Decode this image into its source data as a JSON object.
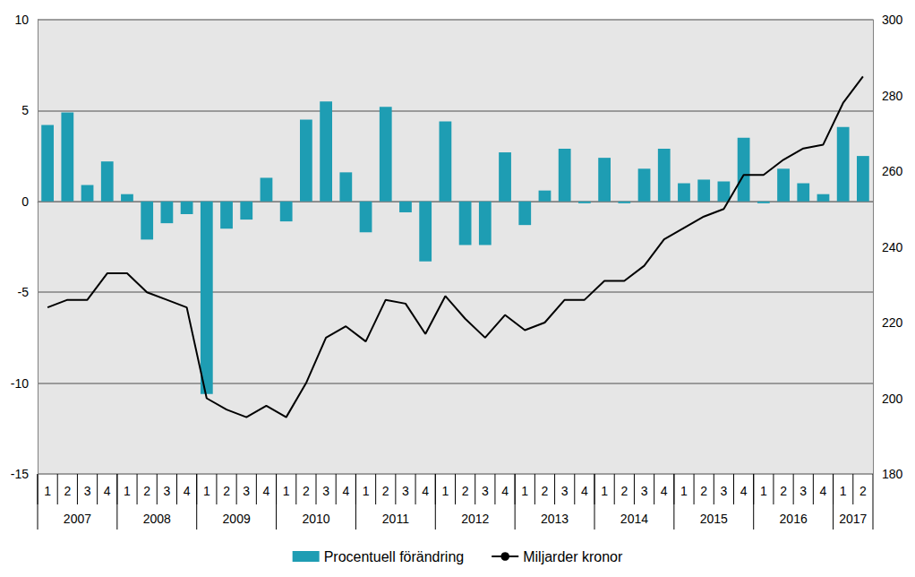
{
  "chart_data": {
    "type": "bar",
    "categories": [
      "1",
      "2",
      "3",
      "4",
      "1",
      "2",
      "3",
      "4",
      "1",
      "2",
      "3",
      "4",
      "1",
      "2",
      "3",
      "4",
      "1",
      "2",
      "3",
      "4",
      "1",
      "2",
      "3",
      "4",
      "1",
      "2",
      "3",
      "4",
      "1",
      "2",
      "3",
      "4",
      "1",
      "2",
      "3",
      "4",
      "1",
      "2",
      "3",
      "4",
      "1",
      "2"
    ],
    "x_groups": [
      "2007",
      "2008",
      "2009",
      "2010",
      "2011",
      "2012",
      "2013",
      "2014",
      "2015",
      "2016",
      "2017"
    ],
    "series": [
      {
        "name": "Procentuell förändring",
        "type": "bar",
        "color": "#1e9db3",
        "values": [
          4.2,
          4.9,
          0.9,
          2.2,
          0.4,
          -2.1,
          -1.2,
          -0.7,
          -10.6,
          -1.5,
          -1.0,
          1.3,
          -1.1,
          4.5,
          5.5,
          1.6,
          -1.7,
          5.2,
          -0.6,
          -3.3,
          4.4,
          -2.4,
          -2.4,
          2.7,
          -1.3,
          0.6,
          2.9,
          -0.1,
          2.4,
          -0.1,
          1.8,
          2.9,
          1.0,
          1.2,
          1.1,
          3.5,
          -0.1,
          1.8,
          1.0,
          0.4,
          4.1,
          2.5
        ]
      },
      {
        "name": "Miljarder kronor",
        "type": "line",
        "color": "#000000",
        "axis": "y2",
        "values": [
          224,
          226,
          226,
          233,
          233,
          228,
          226,
          224,
          200,
          197,
          195,
          198,
          195,
          204,
          216,
          219,
          215,
          226,
          225,
          217,
          227,
          221,
          216,
          222,
          218,
          220,
          226,
          226,
          231,
          231,
          235,
          242,
          245,
          248,
          250,
          259,
          259,
          263,
          266,
          267,
          278,
          285
        ]
      }
    ],
    "ylim": [
      -15,
      10
    ],
    "yticks": [
      -15,
      -10,
      -5,
      0,
      5,
      10
    ],
    "y2lim": [
      180,
      300
    ],
    "y2ticks": [
      180,
      200,
      220,
      240,
      260,
      280,
      300
    ],
    "grid": true,
    "legend": "bottom"
  }
}
